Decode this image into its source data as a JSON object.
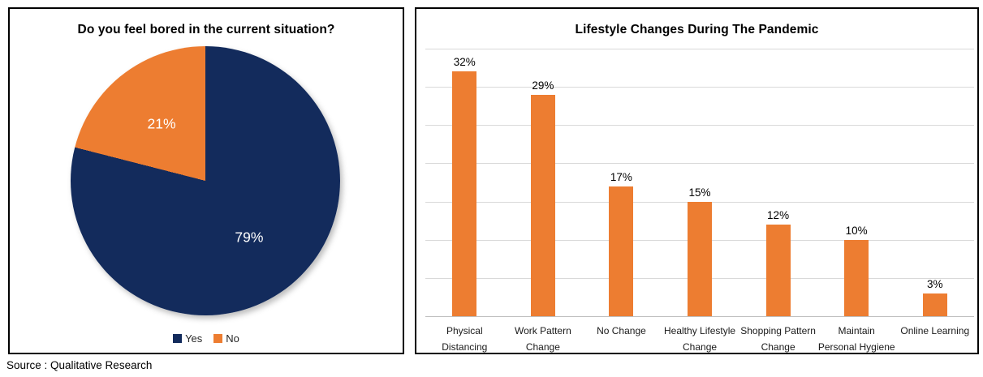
{
  "page": {
    "source_note": "Source : Qualitative Research"
  },
  "colors": {
    "navy": "#132B5C",
    "orange": "#ED7D31",
    "gridline": "#D9D9D9",
    "axis_line": "#BFBFBF",
    "pie_label_text": "#FFFFFF"
  },
  "chart_data": [
    {
      "type": "pie",
      "title": "Do you feel bored in the current situation?",
      "labels": [
        "Yes",
        "No"
      ],
      "values": [
        79,
        21
      ],
      "data_labels": [
        "79%",
        "21%"
      ],
      "slice_colors": [
        "#132B5C",
        "#ED7D31"
      ],
      "start_angle_deg": 0,
      "direction": "clockwise",
      "legend_position": "bottom"
    },
    {
      "type": "bar",
      "title": "Lifestyle Changes During The Pandemic",
      "categories": [
        [
          "Physical",
          "Distancing"
        ],
        [
          "Work Pattern",
          "Change"
        ],
        [
          "No Change"
        ],
        [
          "Healthy Lifestyle",
          "Change"
        ],
        [
          "Shopping Pattern",
          "Change"
        ],
        [
          "Maintain",
          "Personal Hygiene"
        ],
        [
          "Online Learning"
        ]
      ],
      "values": [
        32,
        29,
        17,
        15,
        12,
        10,
        3
      ],
      "data_labels": [
        "32%",
        "29%",
        "17%",
        "15%",
        "12%",
        "10%",
        "3%"
      ],
      "bar_color": "#ED7D31",
      "ylim": [
        0,
        35
      ],
      "gridline_step": 5,
      "grid": true,
      "xlabel": "",
      "ylabel": "",
      "legend_position": "none"
    }
  ]
}
